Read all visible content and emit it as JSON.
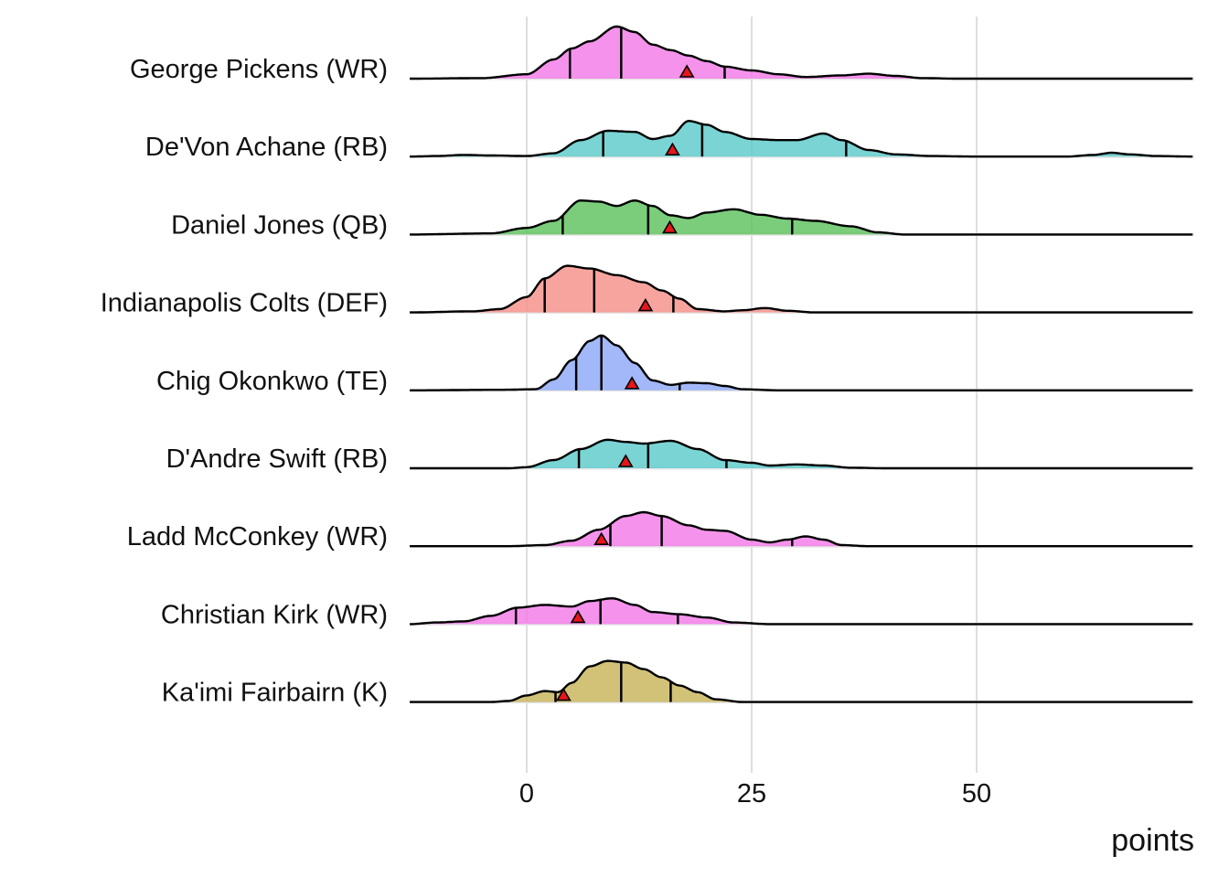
{
  "chart_data": {
    "type": "ridgeline",
    "title": "",
    "xlabel": "points",
    "ylabel": "",
    "xlim": [
      -13,
      74
    ],
    "x_ticks": [
      0,
      25,
      50
    ],
    "grid": true,
    "series": [
      {
        "name": "George Pickens (WR)",
        "color": "#F37BE8",
        "quantiles": [
          4.8,
          10.5,
          22.0
        ],
        "projection": 17.8,
        "density": [
          [
            -13,
            0
          ],
          [
            -5,
            0.01
          ],
          [
            0,
            0.08
          ],
          [
            3,
            0.35
          ],
          [
            5,
            0.55
          ],
          [
            7,
            0.68
          ],
          [
            10,
            0.95
          ],
          [
            12,
            0.85
          ],
          [
            14,
            0.62
          ],
          [
            16,
            0.52
          ],
          [
            18,
            0.42
          ],
          [
            20,
            0.32
          ],
          [
            22,
            0.22
          ],
          [
            25,
            0.15
          ],
          [
            28,
            0.08
          ],
          [
            31,
            0.03
          ],
          [
            35,
            0.06
          ],
          [
            38,
            0.09
          ],
          [
            41,
            0.05
          ],
          [
            44,
            0.01
          ],
          [
            48,
            0
          ],
          [
            74,
            0
          ]
        ]
      },
      {
        "name": "De'Von Achane (RB)",
        "color": "#5DCBCB",
        "quantiles": [
          8.5,
          19.5,
          35.5
        ],
        "projection": 16.2,
        "density": [
          [
            -13,
            0
          ],
          [
            -10,
            0.01
          ],
          [
            -7,
            0.03
          ],
          [
            -4,
            0.02
          ],
          [
            0,
            0.01
          ],
          [
            3,
            0.06
          ],
          [
            6,
            0.3
          ],
          [
            9,
            0.47
          ],
          [
            12,
            0.45
          ],
          [
            14,
            0.32
          ],
          [
            16,
            0.38
          ],
          [
            18,
            0.65
          ],
          [
            20,
            0.58
          ],
          [
            22,
            0.45
          ],
          [
            25,
            0.32
          ],
          [
            28,
            0.3
          ],
          [
            30,
            0.3
          ],
          [
            33,
            0.42
          ],
          [
            35,
            0.3
          ],
          [
            38,
            0.12
          ],
          [
            41,
            0.04
          ],
          [
            45,
            0.01
          ],
          [
            50,
            0
          ],
          [
            60,
            0
          ],
          [
            63,
            0.03
          ],
          [
            65,
            0.07
          ],
          [
            67,
            0.04
          ],
          [
            70,
            0.01
          ],
          [
            74,
            0
          ]
        ]
      },
      {
        "name": "Daniel Jones (QB)",
        "color": "#5EC25E",
        "quantiles": [
          4.0,
          13.5,
          29.5
        ],
        "projection": 15.9,
        "density": [
          [
            -13,
            0
          ],
          [
            -4,
            0.02
          ],
          [
            0,
            0.12
          ],
          [
            3,
            0.25
          ],
          [
            6,
            0.62
          ],
          [
            8,
            0.6
          ],
          [
            10,
            0.52
          ],
          [
            12,
            0.62
          ],
          [
            14,
            0.52
          ],
          [
            16,
            0.35
          ],
          [
            18,
            0.3
          ],
          [
            20,
            0.4
          ],
          [
            23,
            0.46
          ],
          [
            26,
            0.36
          ],
          [
            29,
            0.29
          ],
          [
            32,
            0.25
          ],
          [
            36,
            0.15
          ],
          [
            39,
            0.04
          ],
          [
            42,
            0
          ],
          [
            74,
            0
          ]
        ]
      },
      {
        "name": "Indianapolis Colts (DEF)",
        "color": "#F5908A",
        "quantiles": [
          2.0,
          7.5,
          16.3
        ],
        "projection": 13.2,
        "density": [
          [
            -13,
            0
          ],
          [
            -6,
            0.02
          ],
          [
            -3,
            0.06
          ],
          [
            0,
            0.28
          ],
          [
            2,
            0.62
          ],
          [
            4.5,
            0.85
          ],
          [
            7,
            0.8
          ],
          [
            10,
            0.68
          ],
          [
            13,
            0.55
          ],
          [
            15,
            0.4
          ],
          [
            17,
            0.25
          ],
          [
            19,
            0.06
          ],
          [
            22,
            0.02
          ],
          [
            24,
            0.04
          ],
          [
            26.5,
            0.08
          ],
          [
            29,
            0.03
          ],
          [
            32,
            0
          ],
          [
            74,
            0
          ]
        ]
      },
      {
        "name": "Chig Okonkwo (TE)",
        "color": "#8FA8F8",
        "quantiles": [
          5.5,
          8.3,
          17.0
        ],
        "projection": 11.7,
        "density": [
          [
            -13,
            0
          ],
          [
            -3,
            0.01
          ],
          [
            1,
            0.02
          ],
          [
            3,
            0.2
          ],
          [
            5,
            0.55
          ],
          [
            7,
            0.9
          ],
          [
            8.3,
            1.0
          ],
          [
            10,
            0.82
          ],
          [
            12,
            0.5
          ],
          [
            14,
            0.18
          ],
          [
            16,
            0.1
          ],
          [
            18,
            0.14
          ],
          [
            20,
            0.13
          ],
          [
            22,
            0.08
          ],
          [
            24,
            0.02
          ],
          [
            28,
            0
          ],
          [
            74,
            0
          ]
        ]
      },
      {
        "name": "D'Andre Swift (RB)",
        "color": "#5DCBCB",
        "quantiles": [
          5.8,
          13.5,
          22.2
        ],
        "projection": 11.0,
        "density": [
          [
            -13,
            0
          ],
          [
            -2,
            0
          ],
          [
            0,
            0.02
          ],
          [
            3,
            0.15
          ],
          [
            6,
            0.35
          ],
          [
            9,
            0.52
          ],
          [
            11,
            0.48
          ],
          [
            13,
            0.45
          ],
          [
            16,
            0.5
          ],
          [
            19,
            0.35
          ],
          [
            22,
            0.15
          ],
          [
            25,
            0.1
          ],
          [
            27,
            0.05
          ],
          [
            30,
            0.07
          ],
          [
            33,
            0.05
          ],
          [
            36,
            0.01
          ],
          [
            40,
            0
          ],
          [
            74,
            0
          ]
        ]
      },
      {
        "name": "Ladd McConkey (WR)",
        "color": "#F37BE8",
        "quantiles": [
          9.3,
          15.0,
          29.5
        ],
        "projection": 8.3,
        "density": [
          [
            -13,
            0
          ],
          [
            -2,
            0
          ],
          [
            2,
            0.02
          ],
          [
            5,
            0.1
          ],
          [
            8,
            0.3
          ],
          [
            11,
            0.55
          ],
          [
            13,
            0.62
          ],
          [
            15,
            0.55
          ],
          [
            18,
            0.38
          ],
          [
            20,
            0.3
          ],
          [
            22,
            0.28
          ],
          [
            25,
            0.12
          ],
          [
            27,
            0.07
          ],
          [
            29,
            0.12
          ],
          [
            31,
            0.18
          ],
          [
            33,
            0.12
          ],
          [
            35,
            0.02
          ],
          [
            38,
            0
          ],
          [
            74,
            0
          ]
        ]
      },
      {
        "name": "Christian Kirk (WR)",
        "color": "#F37BE8",
        "quantiles": [
          -1.2,
          8.2,
          16.8
        ],
        "projection": 5.7,
        "density": [
          [
            -13,
            0
          ],
          [
            -10,
            0.03
          ],
          [
            -7,
            0.05
          ],
          [
            -4,
            0.15
          ],
          [
            -1,
            0.3
          ],
          [
            2,
            0.35
          ],
          [
            5,
            0.32
          ],
          [
            7,
            0.42
          ],
          [
            9.5,
            0.47
          ],
          [
            12,
            0.35
          ],
          [
            14,
            0.22
          ],
          [
            17,
            0.18
          ],
          [
            20,
            0.12
          ],
          [
            23,
            0.03
          ],
          [
            27,
            0
          ],
          [
            74,
            0
          ]
        ]
      },
      {
        "name": "Ka'imi Fairbairn (K)",
        "color": "#C8B45A",
        "quantiles": [
          3.2,
          10.5,
          16.0
        ],
        "projection": 4.1,
        "density": [
          [
            -13,
            0
          ],
          [
            -4,
            0
          ],
          [
            -2,
            0.02
          ],
          [
            0,
            0.12
          ],
          [
            2,
            0.2
          ],
          [
            3.5,
            0.18
          ],
          [
            5,
            0.35
          ],
          [
            7,
            0.65
          ],
          [
            9,
            0.75
          ],
          [
            11,
            0.72
          ],
          [
            13,
            0.6
          ],
          [
            15,
            0.45
          ],
          [
            17,
            0.3
          ],
          [
            19,
            0.18
          ],
          [
            21,
            0.05
          ],
          [
            24,
            0
          ],
          [
            74,
            0
          ]
        ]
      }
    ]
  }
}
